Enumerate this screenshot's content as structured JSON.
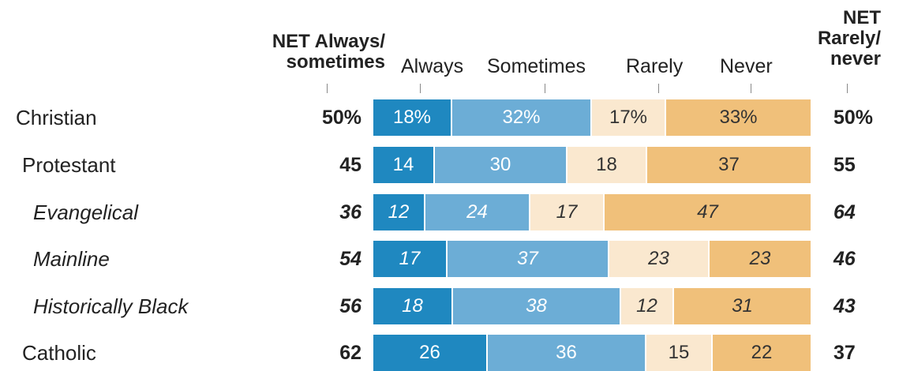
{
  "header": {
    "net_left": "NET Always/\nsometimes",
    "net_right": "NET\nRarely/\nnever",
    "columns": [
      "Always",
      "Sometimes",
      "Rarely",
      "Never"
    ]
  },
  "colors": {
    "always": "#1f88c0",
    "sometimes": "#6cadd6",
    "rarely": "#fae8cf",
    "never": "#f0c07a",
    "always_text": "#ffffff",
    "sometimes_text": "#ffffff",
    "rarely_text": "#333333",
    "never_text": "#333333"
  },
  "chart_data": {
    "type": "bar",
    "stacked": true,
    "orientation": "horizontal",
    "series": [
      {
        "name": "Always",
        "values": [
          18,
          14,
          12,
          17,
          18,
          26
        ]
      },
      {
        "name": "Sometimes",
        "values": [
          32,
          30,
          24,
          37,
          38,
          36
        ]
      },
      {
        "name": "Rarely",
        "values": [
          17,
          18,
          17,
          23,
          12,
          15
        ]
      },
      {
        "name": "Never",
        "values": [
          33,
          37,
          47,
          23,
          31,
          22
        ]
      }
    ],
    "categories": [
      "Christian",
      "Protestant",
      "Evangelical",
      "Mainline",
      "Historically Black",
      "Catholic"
    ],
    "rows": [
      {
        "label": "Christian",
        "italic": false,
        "indent": 0,
        "net_left": "50%",
        "net_right": "50%",
        "segments": [
          "18%",
          "32%",
          "17%",
          "33%"
        ],
        "values": [
          18,
          32,
          17,
          33
        ]
      },
      {
        "label": "Protestant",
        "italic": false,
        "indent": 1,
        "net_left": "45",
        "net_right": "55",
        "segments": [
          "14",
          "30",
          "18",
          "37"
        ],
        "values": [
          14,
          30,
          18,
          37
        ]
      },
      {
        "label": "Evangelical",
        "italic": true,
        "indent": 2,
        "net_left": "36",
        "net_right": "64",
        "segments": [
          "12",
          "24",
          "17",
          "47"
        ],
        "values": [
          12,
          24,
          17,
          47
        ]
      },
      {
        "label": "Mainline",
        "italic": true,
        "indent": 2,
        "net_left": "54",
        "net_right": "46",
        "segments": [
          "17",
          "37",
          "23",
          "23"
        ],
        "values": [
          17,
          37,
          23,
          23
        ]
      },
      {
        "label": "Historically Black",
        "italic": true,
        "indent": 2,
        "net_left": "56",
        "net_right": "43",
        "segments": [
          "18",
          "38",
          "12",
          "31"
        ],
        "values": [
          18,
          38,
          12,
          31
        ]
      },
      {
        "label": "Catholic",
        "italic": false,
        "indent": 1,
        "net_left": "62",
        "net_right": "37",
        "segments": [
          "26",
          "36",
          "15",
          "22"
        ],
        "values": [
          26,
          36,
          15,
          22
        ]
      }
    ]
  }
}
